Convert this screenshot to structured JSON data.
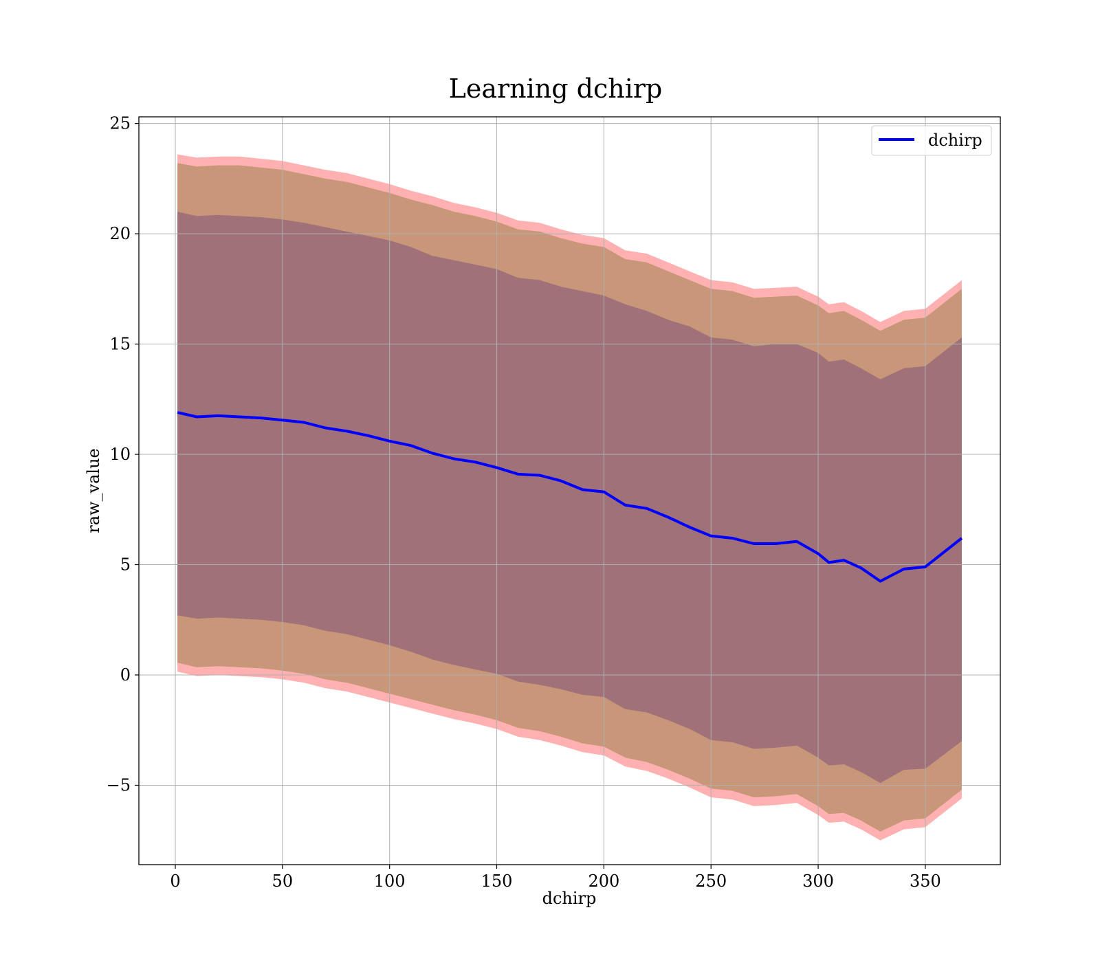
{
  "chart_data": {
    "type": "area",
    "title": "Learning dchirp",
    "xlabel": "dchirp",
    "ylabel": "raw_value",
    "xlim": [
      -17,
      385
    ],
    "ylim": [
      -8.6,
      25.3
    ],
    "x_ticks": [
      0,
      50,
      100,
      150,
      200,
      250,
      300,
      350
    ],
    "x_tick_labels": [
      "0",
      "50",
      "100",
      "150",
      "200",
      "250",
      "300",
      "350"
    ],
    "y_ticks": [
      -5,
      0,
      5,
      10,
      15,
      20,
      25
    ],
    "y_tick_labels": [
      "−5",
      "0",
      "5",
      "10",
      "15",
      "20",
      "25"
    ],
    "grid": true,
    "legend": {
      "position": "top-right",
      "entries": [
        "dchirp"
      ]
    },
    "series": [
      {
        "name": "dchirp",
        "color": "#0000ff",
        "x": [
          1,
          10,
          20,
          30,
          40,
          50,
          60,
          70,
          80,
          90,
          100,
          110,
          120,
          130,
          140,
          150,
          160,
          170,
          180,
          190,
          200,
          210,
          220,
          230,
          240,
          250,
          260,
          270,
          280,
          290,
          300,
          305,
          312,
          320,
          329,
          340,
          350,
          367
        ],
        "y": [
          11.9,
          11.7,
          11.75,
          11.7,
          11.65,
          11.55,
          11.45,
          11.2,
          11.05,
          10.85,
          10.6,
          10.4,
          10.05,
          9.8,
          9.65,
          9.4,
          9.1,
          9.05,
          8.8,
          8.4,
          8.3,
          7.7,
          7.55,
          7.15,
          6.7,
          6.3,
          6.2,
          5.95,
          5.95,
          6.05,
          5.5,
          5.1,
          5.2,
          4.85,
          4.25,
          4.8,
          4.9,
          6.2
        ]
      }
    ],
    "bands": {
      "x": [
        1,
        10,
        20,
        30,
        40,
        50,
        60,
        70,
        80,
        90,
        100,
        110,
        120,
        130,
        140,
        150,
        160,
        170,
        180,
        190,
        200,
        210,
        220,
        230,
        240,
        250,
        260,
        270,
        280,
        290,
        300,
        305,
        312,
        320,
        329,
        340,
        350,
        367
      ],
      "inner": {
        "color": "#a1717a",
        "upper": [
          21.0,
          20.8,
          20.85,
          20.8,
          20.75,
          20.65,
          20.5,
          20.3,
          20.1,
          19.9,
          19.7,
          19.4,
          19.0,
          18.8,
          18.6,
          18.4,
          18.0,
          17.9,
          17.6,
          17.4,
          17.2,
          16.8,
          16.5,
          16.1,
          15.8,
          15.3,
          15.2,
          14.9,
          15.0,
          15.0,
          14.6,
          14.2,
          14.3,
          13.9,
          13.4,
          13.9,
          14.0,
          15.3
        ],
        "lower": [
          2.7,
          2.55,
          2.6,
          2.55,
          2.5,
          2.4,
          2.25,
          2.0,
          1.85,
          1.6,
          1.35,
          1.05,
          0.7,
          0.45,
          0.25,
          0.05,
          -0.3,
          -0.45,
          -0.65,
          -0.9,
          -1.0,
          -1.55,
          -1.7,
          -2.05,
          -2.45,
          -2.95,
          -3.05,
          -3.35,
          -3.3,
          -3.2,
          -3.75,
          -4.1,
          -4.05,
          -4.4,
          -4.9,
          -4.3,
          -4.25,
          -3.0
        ]
      },
      "outer": {
        "color": "#c89678",
        "upper": [
          23.2,
          23.05,
          23.1,
          23.1,
          23.0,
          22.9,
          22.7,
          22.5,
          22.35,
          22.1,
          21.85,
          21.55,
          21.3,
          21.0,
          20.8,
          20.55,
          20.2,
          20.1,
          19.8,
          19.55,
          19.4,
          18.85,
          18.7,
          18.3,
          17.9,
          17.5,
          17.4,
          17.1,
          17.15,
          17.2,
          16.75,
          16.4,
          16.5,
          16.1,
          15.6,
          16.1,
          16.2,
          17.5
        ],
        "lower": [
          0.55,
          0.35,
          0.4,
          0.35,
          0.3,
          0.2,
          0.05,
          -0.2,
          -0.35,
          -0.6,
          -0.85,
          -1.1,
          -1.35,
          -1.6,
          -1.8,
          -2.05,
          -2.4,
          -2.55,
          -2.8,
          -3.1,
          -3.25,
          -3.75,
          -3.95,
          -4.3,
          -4.7,
          -5.15,
          -5.25,
          -5.55,
          -5.5,
          -5.4,
          -5.95,
          -6.3,
          -6.25,
          -6.6,
          -7.1,
          -6.6,
          -6.5,
          -5.2
        ]
      },
      "edge": {
        "color": "#ffb0b0",
        "upper": [
          23.6,
          23.45,
          23.5,
          23.5,
          23.4,
          23.3,
          23.1,
          22.9,
          22.75,
          22.5,
          22.25,
          21.95,
          21.7,
          21.4,
          21.2,
          20.95,
          20.6,
          20.5,
          20.2,
          19.95,
          19.8,
          19.25,
          19.1,
          18.7,
          18.3,
          17.9,
          17.8,
          17.5,
          17.55,
          17.6,
          17.15,
          16.8,
          16.9,
          16.5,
          16.0,
          16.5,
          16.6,
          17.9
        ],
        "lower": [
          0.15,
          -0.05,
          0.0,
          -0.05,
          -0.1,
          -0.2,
          -0.35,
          -0.6,
          -0.75,
          -1.0,
          -1.25,
          -1.5,
          -1.75,
          -2.0,
          -2.2,
          -2.45,
          -2.8,
          -2.95,
          -3.2,
          -3.5,
          -3.65,
          -4.15,
          -4.35,
          -4.7,
          -5.1,
          -5.55,
          -5.65,
          -5.95,
          -5.9,
          -5.8,
          -6.35,
          -6.7,
          -6.65,
          -7.0,
          -7.5,
          -7.0,
          -6.9,
          -5.6
        ]
      }
    }
  }
}
